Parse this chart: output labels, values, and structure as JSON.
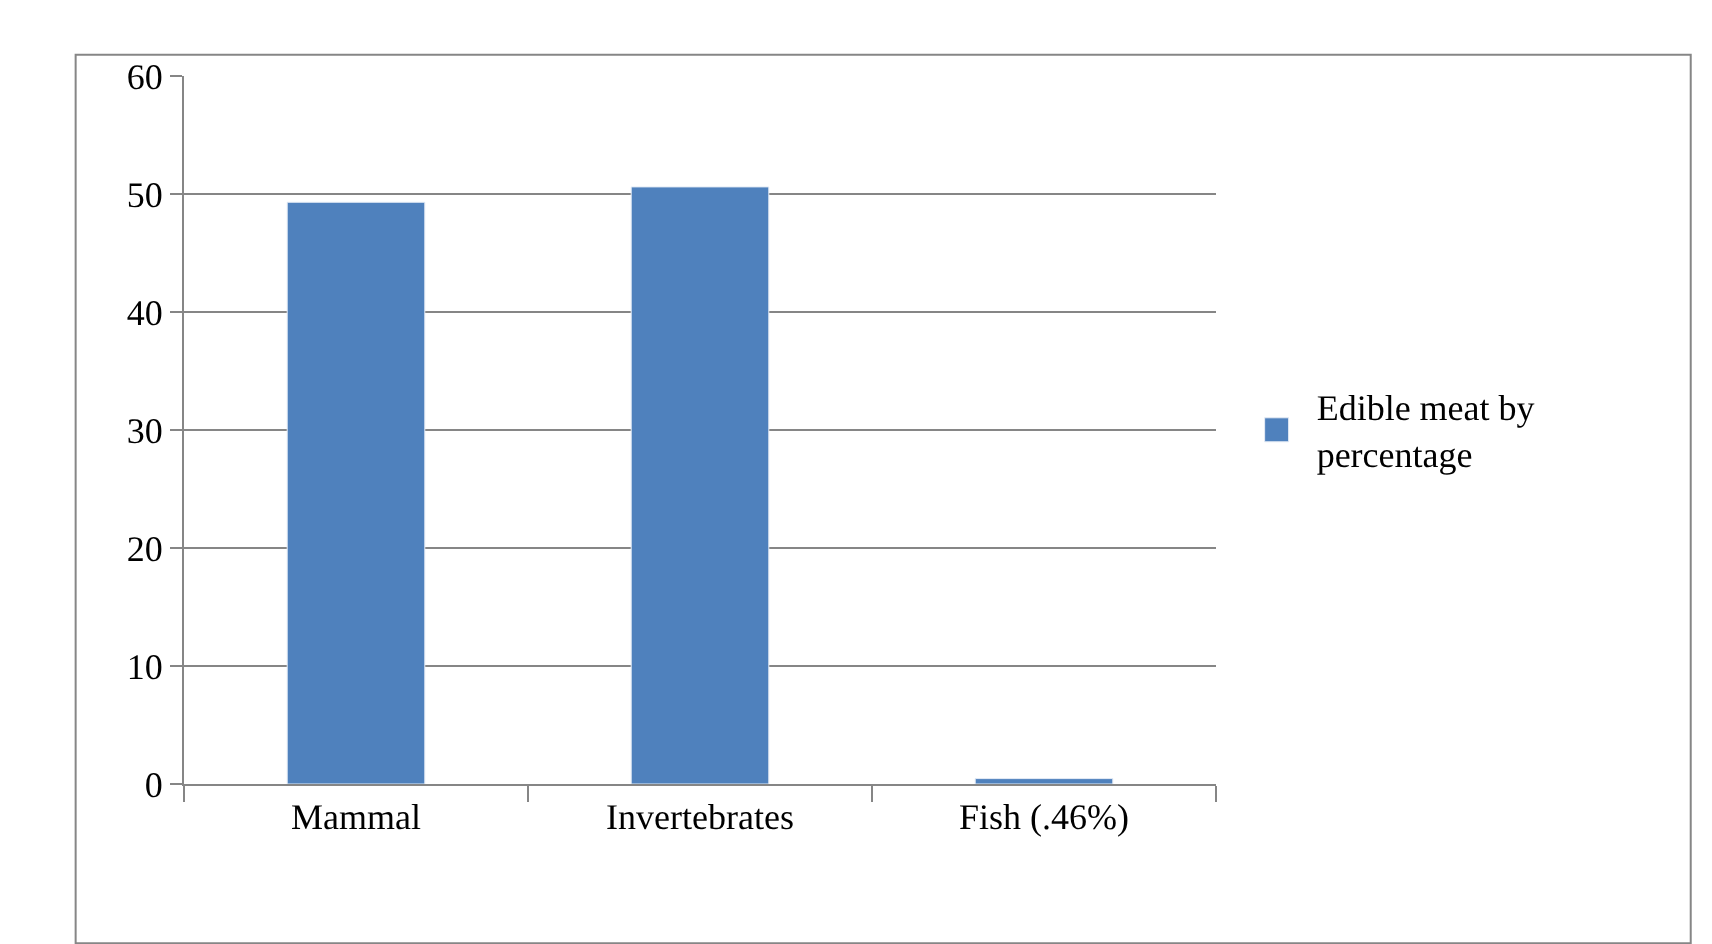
{
  "chart_data": {
    "type": "bar",
    "categories": [
      "Mammal",
      "Invertebrates",
      "Fish (.46%)"
    ],
    "series": [
      {
        "name": "Edible meat by percentage",
        "color": "#4f81bd",
        "values": [
          49.3,
          50.6,
          0.46
        ]
      }
    ],
    "ylim": [
      0,
      60
    ],
    "yticks": [
      0,
      10,
      20,
      30,
      40,
      50,
      60
    ],
    "grid": "y",
    "legend": "right"
  }
}
